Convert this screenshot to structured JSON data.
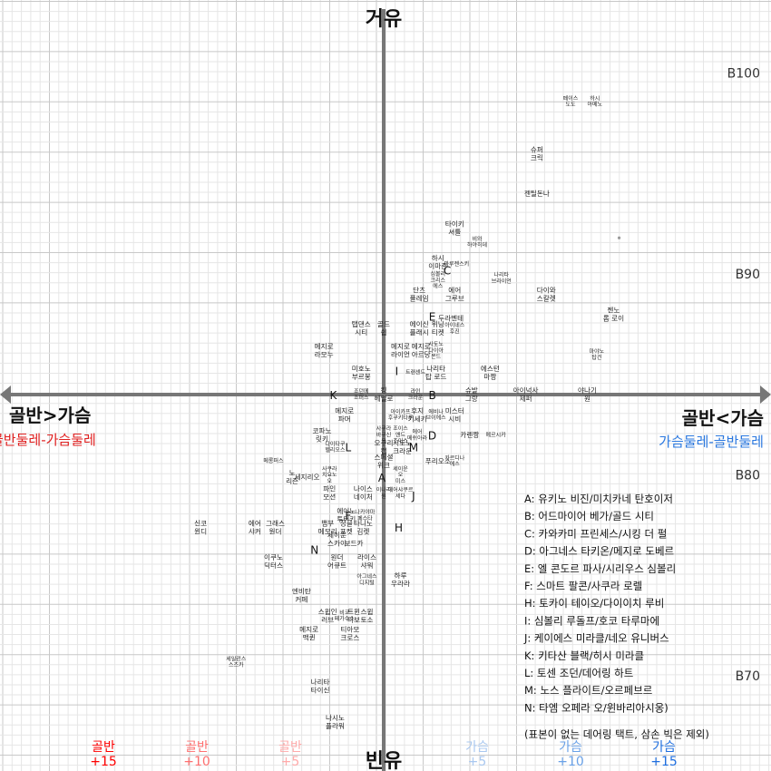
{
  "chart_data": {
    "type": "scatter",
    "axes": {
      "top": "거유",
      "bottom": "빈유",
      "left": "골반>가슴",
      "left_sub": "골반둘레-가슴둘레",
      "right": "골반<가슴",
      "right_sub": "가슴둘레-골반둘레"
    },
    "y_ticks": [
      {
        "label": "B100",
        "value": 100
      },
      {
        "label": "B90",
        "value": 90
      },
      {
        "label": "B80",
        "value": 80
      },
      {
        "label": "B70",
        "value": 70
      }
    ],
    "x_ticks": [
      {
        "label": [
          "골반",
          "+15"
        ],
        "value": -15,
        "color": "#ff0000"
      },
      {
        "label": [
          "골반",
          "+10"
        ],
        "value": -10,
        "color": "#ff7070"
      },
      {
        "label": [
          "골반",
          "+5"
        ],
        "value": -5,
        "color": "#ffaaaa"
      },
      {
        "label": [
          "가슴",
          "+5"
        ],
        "value": 5,
        "color": "#a9c8f0"
      },
      {
        "label": [
          "가슴",
          "+10"
        ],
        "value": 10,
        "color": "#6aa2e8"
      },
      {
        "label": [
          "가슴",
          "+15"
        ],
        "value": 15,
        "color": "#1f6fe0"
      }
    ],
    "points": [
      {
        "label": [
          "페이스",
          "도도"
        ],
        "x": 10.0,
        "y": 98.6,
        "small": true
      },
      {
        "label": [
          "하시",
          "아메노"
        ],
        "x": 11.3,
        "y": 98.6,
        "small": true
      },
      {
        "label": [
          "슈퍼",
          "크릭"
        ],
        "x": 8.2,
        "y": 96.0
      },
      {
        "label": [
          "젠틸돈나"
        ],
        "x": 8.2,
        "y": 94.0
      },
      {
        "label": [
          "타이키",
          "셔틀"
        ],
        "x": 3.8,
        "y": 92.3
      },
      {
        "label": [
          "비와",
          "하야히데"
        ],
        "x": 5.0,
        "y": 91.6,
        "small": true
      },
      {
        "label": [
          "하시",
          "이마존"
        ],
        "x": 2.9,
        "y": 90.6
      },
      {
        "label": [
          "마루젠스키"
        ],
        "x": 3.9,
        "y": 90.5,
        "small": true
      },
      {
        "label": [
          "심볼리",
          "크리스",
          "에스"
        ],
        "x": 2.9,
        "y": 89.7,
        "small": true
      },
      {
        "label": [
          "나리타",
          "브라이언"
        ],
        "x": 6.3,
        "y": 89.8,
        "small": true
      },
      {
        "label": [
          "단츠",
          "플레임"
        ],
        "x": 1.9,
        "y": 89.0
      },
      {
        "label": [
          "에어",
          "그루브"
        ],
        "x": 3.8,
        "y": 89.0
      },
      {
        "label": [
          "다이와",
          "스칼렛"
        ],
        "x": 8.7,
        "y": 89.0
      },
      {
        "label": [
          "젠노",
          "롭 로이"
        ],
        "x": 12.3,
        "y": 88.0
      },
      {
        "label": [
          "두라멘테"
        ],
        "x": 3.6,
        "y": 87.8
      },
      {
        "label": [
          "탭댄스",
          "시티"
        ],
        "x": -1.2,
        "y": 87.3
      },
      {
        "label": [
          "골드",
          "쉽"
        ],
        "x": 0.0,
        "y": 87.3
      },
      {
        "label": [
          "에이신",
          "플래시"
        ],
        "x": 1.9,
        "y": 87.3
      },
      {
        "label": [
          "위닝",
          "티켓"
        ],
        "x": 2.9,
        "y": 87.3
      },
      {
        "label": [
          "아이네스",
          "후진"
        ],
        "x": 3.8,
        "y": 87.3,
        "small": true
      },
      {
        "label": [
          "메지로",
          "라모누"
        ],
        "x": -3.2,
        "y": 86.2
      },
      {
        "label": [
          "메지로",
          "라이언"
        ],
        "x": 0.9,
        "y": 86.2
      },
      {
        "label": [
          "메지로",
          "아르당"
        ],
        "x": 2.0,
        "y": 86.2
      },
      {
        "label": [
          "사토노",
          "다이아",
          "몬드"
        ],
        "x": 2.8,
        "y": 86.2,
        "small": true
      },
      {
        "label": [
          "마야노",
          "탑건"
        ],
        "x": 11.4,
        "y": 86.0,
        "small": true
      },
      {
        "label": [
          "미호노",
          "부르봉"
        ],
        "x": -1.2,
        "y": 85.1
      },
      {
        "label": [
          "트랜센드"
        ],
        "x": 1.7,
        "y": 85.1,
        "small": true
      },
      {
        "label": [
          "나리타",
          "탑 로드"
        ],
        "x": 2.8,
        "y": 85.1
      },
      {
        "label": [
          "에스턴",
          "마짱"
        ],
        "x": 5.7,
        "y": 85.1
      },
      {
        "label": [
          "슈발",
          "그랑"
        ],
        "x": 4.7,
        "y": 84.0
      },
      {
        "label": [
          "킹",
          "헤일로"
        ],
        "x": 0.0,
        "y": 84.0
      },
      {
        "label": [
          "조던메",
          "조퍼스"
        ],
        "x": -1.2,
        "y": 84.0,
        "small": true
      },
      {
        "label": [
          "라인",
          "크라운"
        ],
        "x": 1.7,
        "y": 84.0,
        "small": true
      },
      {
        "label": [
          "아이넉사",
          "제퍼"
        ],
        "x": 7.6,
        "y": 84.0
      },
      {
        "label": [
          "야나기",
          "원"
        ],
        "x": 10.9,
        "y": 84.0
      },
      {
        "label": [
          "메지로",
          "파머"
        ],
        "x": -2.1,
        "y": 83.0
      },
      {
        "label": [
          "아이카프",
          "후쿠키타루"
        ],
        "x": 0.9,
        "y": 83.0,
        "small": true
      },
      {
        "label": [
          "후지",
          "키세키"
        ],
        "x": 1.8,
        "y": 83.0
      },
      {
        "label": [
          "에비나",
          "브이에스"
        ],
        "x": 2.8,
        "y": 83.0,
        "small": true
      },
      {
        "label": [
          "미스터",
          "시비"
        ],
        "x": 3.8,
        "y": 83.0
      },
      {
        "label": [
          "코파노",
          "릿키"
        ],
        "x": -3.3,
        "y": 82.0
      },
      {
        "label": [
          "사쿠라",
          "바쿠신",
          "오"
        ],
        "x": 0.0,
        "y": 82.0,
        "small": true
      },
      {
        "label": [
          "조이스",
          "앤드",
          "조이스"
        ],
        "x": 0.9,
        "y": 82.0,
        "small": true
      },
      {
        "label": [
          "에어",
          "메쉬아라"
        ],
        "x": 1.8,
        "y": 82.0,
        "small": true
      },
      {
        "label": [
          "카렌짱"
        ],
        "x": 4.6,
        "y": 82.0
      },
      {
        "label": [
          "메르시카"
        ],
        "x": 6.0,
        "y": 82.0,
        "small": true
      },
      {
        "label": [
          "다이타쿠",
          "헬리오스"
        ],
        "x": -2.6,
        "y": 81.4,
        "small": true
      },
      {
        "label": [
          "오구리",
          "캡"
        ],
        "x": 0.0,
        "y": 81.4
      },
      {
        "label": [
          "시토노",
          "크라운"
        ],
        "x": 1.0,
        "y": 81.4
      },
      {
        "label": [
          "메롱퍼스"
        ],
        "x": -5.9,
        "y": 80.7,
        "small": true
      },
      {
        "label": [
          "스페셜",
          "위크"
        ],
        "x": 0.0,
        "y": 80.7
      },
      {
        "label": [
          "푸리오소"
        ],
        "x": 2.9,
        "y": 80.7
      },
      {
        "label": [
          "카르디나",
          "에스"
        ],
        "x": 3.8,
        "y": 80.7,
        "small": true
      },
      {
        "label": [
          "노",
          "리즌"
        ],
        "x": -4.9,
        "y": 79.9
      },
      {
        "label": [
          "세지리오"
        ],
        "x": -4.1,
        "y": 79.9
      },
      {
        "label": [
          "사쿠라",
          "치요노",
          "오"
        ],
        "x": -2.9,
        "y": 80.0,
        "small": true
      },
      {
        "label": [
          "세이운",
          "오",
          "미스"
        ],
        "x": 0.9,
        "y": 80.0,
        "small": true
      },
      {
        "label": [
          "파인",
          "모션"
        ],
        "x": -2.9,
        "y": 79.1
      },
      {
        "label": [
          "나이스",
          "네이처"
        ],
        "x": -1.1,
        "y": 79.1
      },
      {
        "label": [
          "이나리",
          "원"
        ],
        "x": 0.0,
        "y": 79.1,
        "small": true
      },
      {
        "label": [
          "에어샤쿠르",
          "세다"
        ],
        "x": 0.9,
        "y": 79.1,
        "small": true
      },
      {
        "label": [
          "에어노",
          "투터키"
        ],
        "x": -2.0,
        "y": 78.0
      },
      {
        "label": [
          "나카야마",
          "페스타"
        ],
        "x": -1.0,
        "y": 78.0,
        "small": true
      },
      {
        "label": [
          "신코",
          "윈디"
        ],
        "x": -9.8,
        "y": 77.4
      },
      {
        "label": [
          "에어",
          "샤커"
        ],
        "x": -6.9,
        "y": 77.4
      },
      {
        "label": [
          "그래스",
          "원더"
        ],
        "x": -5.8,
        "y": 77.4
      },
      {
        "label": [
          "뱀부",
          "메모리"
        ],
        "x": -3.0,
        "y": 77.4
      },
      {
        "label": [
          "정글",
          "포켓"
        ],
        "x": -2.0,
        "y": 77.4
      },
      {
        "label": [
          "타니노",
          "김렛"
        ],
        "x": -1.1,
        "y": 77.4
      },
      {
        "label": [
          "세이운",
          "스카이"
        ],
        "x": -2.5,
        "y": 76.8
      },
      {
        "label": [
          "보드카"
        ],
        "x": -1.6,
        "y": 76.6
      },
      {
        "label": [
          "이쿠노",
          "딕터스"
        ],
        "x": -5.9,
        "y": 75.7
      },
      {
        "label": [
          "원더",
          "어큐트"
        ],
        "x": -2.5,
        "y": 75.7
      },
      {
        "label": [
          "라이스",
          "샤워"
        ],
        "x": -0.9,
        "y": 75.7
      },
      {
        "label": [
          "하루",
          "우라라"
        ],
        "x": 0.9,
        "y": 74.8
      },
      {
        "label": [
          "아그네스",
          "디지털"
        ],
        "x": -0.9,
        "y": 74.8,
        "small": true
      },
      {
        "label": [
          "엔비탄",
          "커페"
        ],
        "x": -4.4,
        "y": 74.0
      },
      {
        "label": [
          "스윕인",
          "러브"
        ],
        "x": -3.0,
        "y": 73.0
      },
      {
        "label": [
          "비코",
          "페가수스"
        ],
        "x": -2.1,
        "y": 73.0,
        "small": true
      },
      {
        "label": [
          "트윈",
          "터보"
        ],
        "x": -1.6,
        "y": 73.0
      },
      {
        "label": [
          "스윕",
          "토소"
        ],
        "x": -0.9,
        "y": 73.0
      },
      {
        "label": [
          "메지로",
          "맥퀸"
        ],
        "x": -4.0,
        "y": 72.1
      },
      {
        "label": [
          "티아모",
          "크로스"
        ],
        "x": -1.8,
        "y": 72.1
      },
      {
        "label": [
          "세일런스",
          "스즈카"
        ],
        "x": -7.9,
        "y": 70.7,
        "small": true
      },
      {
        "label": [
          "나리타",
          "타이신"
        ],
        "x": -3.4,
        "y": 69.5
      },
      {
        "label": [
          "나시노",
          "플라워"
        ],
        "x": -2.6,
        "y": 67.7
      }
    ],
    "letters": [
      {
        "text": "C",
        "x": 3.4,
        "y": 90.2
      },
      {
        "text": "E",
        "x": 2.6,
        "y": 87.9
      },
      {
        "text": "I",
        "x": 0.7,
        "y": 85.2
      },
      {
        "text": "K",
        "x": -2.7,
        "y": 84.0
      },
      {
        "text": "B",
        "x": 2.6,
        "y": 84.0
      },
      {
        "text": "D",
        "x": 2.6,
        "y": 82.0
      },
      {
        "text": "L",
        "x": -1.9,
        "y": 81.4
      },
      {
        "text": "M",
        "x": 1.6,
        "y": 81.4
      },
      {
        "text": "A",
        "x": -0.1,
        "y": 79.9
      },
      {
        "text": "J",
        "x": 1.6,
        "y": 79.0
      },
      {
        "text": "F",
        "x": -1.9,
        "y": 78.0
      },
      {
        "text": "H",
        "x": 0.8,
        "y": 77.4
      },
      {
        "text": "N",
        "x": -3.7,
        "y": 76.3
      }
    ],
    "legend": [
      "A: 유키노 비진/미치카네 탄호이저",
      "B: 어드마이어 베가/골드 시티",
      "C: 카와카미 프린세스/시킹 더 펄",
      "D: 아그네스 타키온/메지로 도베르",
      "E: 엘 콘도르 파사/시리우스 심볼리",
      "F: 스마트 팔콘/사쿠라 로렐",
      "H: 토카이 테이오/다이이치 루비",
      "I: 심볼리 루돌프/호코 타루마에",
      "J: 케이에스 미라클/네오 유니버스",
      "K: 키타산 블랙/히시 미라클",
      "L: 토센 조던/데어링 하트",
      "M: 노스 플라이트/오르페브르",
      "N: 타엠 오페라 오/윈바리아시옹)",
      "",
      "(표본이 없는 데어링 택트, 삼손 빅은 제외)"
    ],
    "stray_dot": {
      "x": 12.6,
      "y": 91.8
    },
    "x_range": [
      -18,
      18
    ],
    "y_range": [
      66,
      103
    ],
    "grid": true
  }
}
